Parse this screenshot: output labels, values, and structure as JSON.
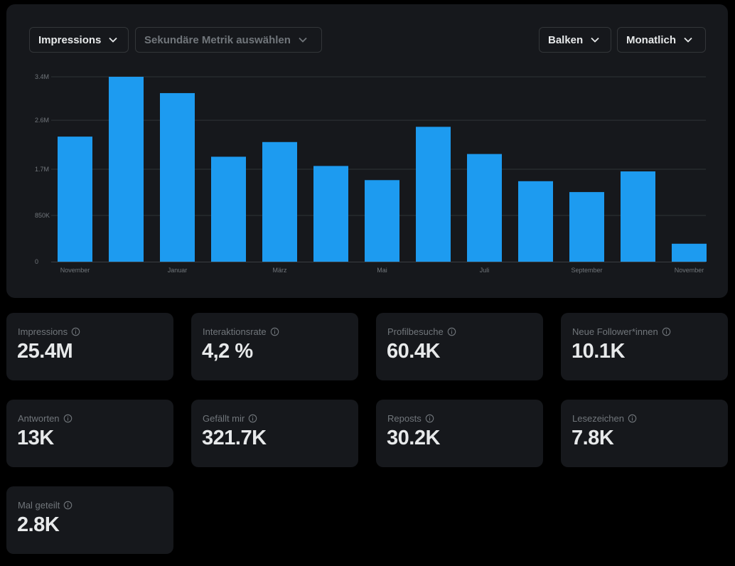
{
  "controls": {
    "metric_label": "Impressions",
    "secondary_placeholder": "Sekundäre Metrik auswählen",
    "chart_type_label": "Balken",
    "period_label": "Monatlich"
  },
  "colors": {
    "bar": "#1d9bf0",
    "panel": "#16181c",
    "grid": "#2f3336",
    "muted_text": "#71767b"
  },
  "chart_data": {
    "type": "bar",
    "title": "",
    "xlabel": "",
    "ylabel": "",
    "ylim": [
      0,
      3400000
    ],
    "y_ticks": [
      {
        "value": 0,
        "label": "0"
      },
      {
        "value": 850000,
        "label": "850K"
      },
      {
        "value": 1700000,
        "label": "1.7M"
      },
      {
        "value": 2600000,
        "label": "2.6M"
      },
      {
        "value": 3400000,
        "label": "3.4M"
      }
    ],
    "x_tick_labels": [
      "November",
      "",
      "Januar",
      "",
      "März",
      "",
      "Mai",
      "",
      "Juli",
      "",
      "September",
      "",
      "November"
    ],
    "values": [
      2300000,
      3400000,
      3100000,
      1930000,
      2200000,
      1760000,
      1500000,
      2480000,
      1980000,
      1480000,
      1280000,
      1660000,
      330000
    ],
    "grid": true,
    "legend": "none"
  },
  "stats": [
    {
      "label": "Impressions",
      "value": "25.4M"
    },
    {
      "label": "Interaktionsrate",
      "value": "4,2 %"
    },
    {
      "label": "Profilbesuche",
      "value": "60.4K"
    },
    {
      "label": "Neue Follower*innen",
      "value": "10.1K"
    },
    {
      "label": "Antworten",
      "value": "13K"
    },
    {
      "label": "Gefällt mir",
      "value": "321.7K"
    },
    {
      "label": "Reposts",
      "value": "30.2K"
    },
    {
      "label": "Lesezeichen",
      "value": "7.8K"
    },
    {
      "label": "Mal geteilt",
      "value": "2.8K"
    }
  ],
  "icons": {
    "dropdown": "chevron-down-icon",
    "info": "info-icon"
  }
}
